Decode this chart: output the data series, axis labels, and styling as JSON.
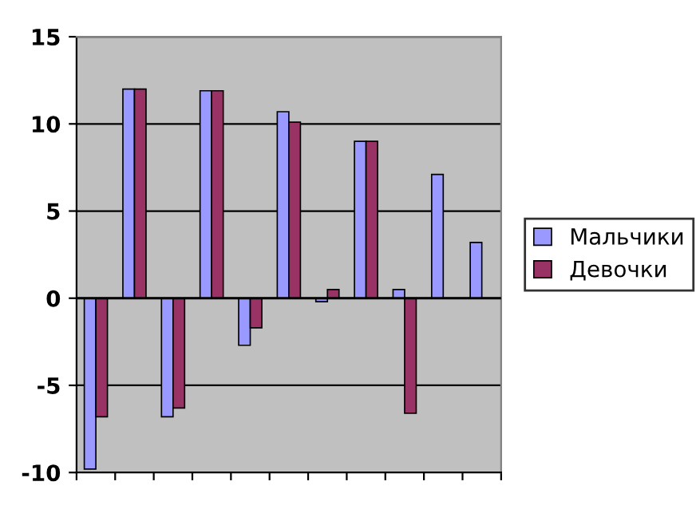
{
  "chart_data": {
    "type": "bar",
    "categories": [
      null,
      null,
      null,
      null,
      null,
      null,
      null,
      null,
      null,
      null,
      null
    ],
    "series": [
      {
        "name": "Мальчики",
        "color": "#9999ff",
        "values": [
          -9.8,
          12,
          -6.8,
          11.9,
          -2.7,
          10.7,
          -0.2,
          9,
          0.5,
          7.1,
          3.2
        ]
      },
      {
        "name": "Девочки",
        "color": "#993366",
        "values": [
          -6.8,
          12,
          -6.3,
          11.9,
          -1.7,
          10.1,
          0.5,
          9,
          -6.6,
          null,
          null
        ]
      }
    ],
    "ylim": [
      -10,
      15
    ],
    "yticks": [
      -10,
      -5,
      0,
      5,
      10,
      15
    ],
    "grid": "y",
    "legend": "right"
  }
}
